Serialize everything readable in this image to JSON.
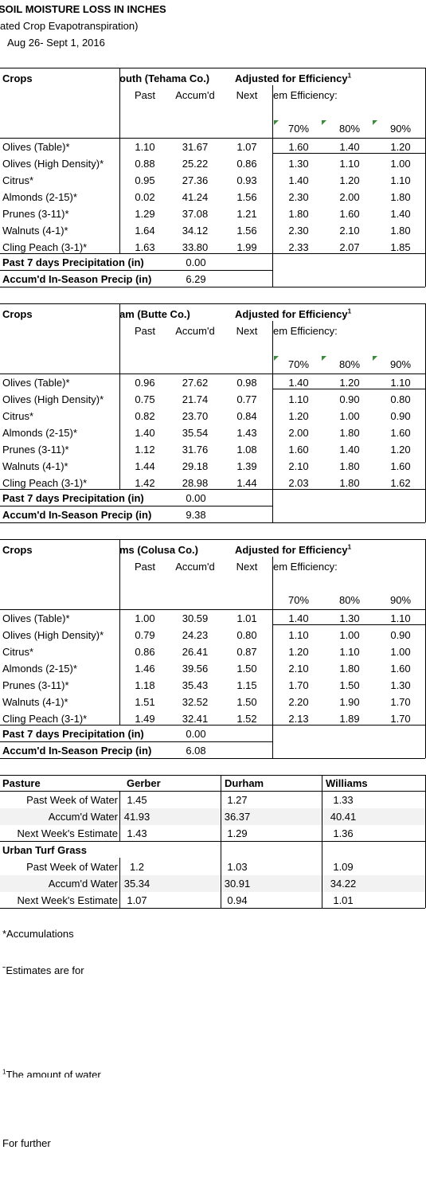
{
  "header": {
    "title": "SOIL MOISTURE LOSS IN INCHES",
    "subtitle": "ated Crop Evapotranspiration)",
    "dates": "Aug 26- Sept 1, 2016"
  },
  "crop_sections": [
    {
      "crops_label": "Crops",
      "location": "outh (Tehama Co.)",
      "adjusted_label": "Adjusted for Efficiency",
      "footnote_mark": "1",
      "past_label": "Past",
      "accum_label": "Accum'd",
      "next_label": "Next",
      "efficiency_label": "em Efficiency:",
      "eff_headers": [
        "70%",
        "80%",
        "90%"
      ],
      "rows": [
        {
          "crop": "Olives (Table)*",
          "past": "1.10",
          "accum": "31.67",
          "next": "1.07",
          "e70": "1.60",
          "e80": "1.40",
          "e90": "1.20"
        },
        {
          "crop": "Olives (High Density)*",
          "past": "0.88",
          "accum": "25.22",
          "next": "0.86",
          "e70": "1.30",
          "e80": "1.10",
          "e90": "1.00"
        },
        {
          "crop": "Citrus*",
          "past": "0.95",
          "accum": "27.36",
          "next": "0.93",
          "e70": "1.40",
          "e80": "1.20",
          "e90": "1.10"
        },
        {
          "crop": "Almonds (2-15)*",
          "past": "0.02",
          "accum": "41.24",
          "next": "1.56",
          "e70": "2.30",
          "e80": "2.00",
          "e90": "1.80"
        },
        {
          "crop": "Prunes (3-11)*",
          "past": "1.29",
          "accum": "37.08",
          "next": "1.21",
          "e70": "1.80",
          "e80": "1.60",
          "e90": "1.40"
        },
        {
          "crop": "Walnuts (4-1)*",
          "past": "1.64",
          "accum": "34.12",
          "next": "1.56",
          "e70": "2.30",
          "e80": "2.10",
          "e90": "1.80"
        },
        {
          "crop": "Cling Peach (3-1)*",
          "past": "1.63",
          "accum": "33.80",
          "next": "1.99",
          "e70": "2.33",
          "e80": "2.07",
          "e90": "1.85"
        }
      ],
      "precip_label": "Past 7 days Precipitation (in)",
      "precip_value": "0.00",
      "accum_precip_label": "Accum'd In-Season Precip (in)",
      "accum_precip_value": "6.29"
    },
    {
      "crops_label": "Crops",
      "location": "am (Butte Co.)",
      "adjusted_label": "Adjusted for Efficiency",
      "footnote_mark": "1",
      "past_label": "Past",
      "accum_label": "Accum'd",
      "next_label": "Next",
      "efficiency_label": "em Efficiency:",
      "eff_headers": [
        "70%",
        "80%",
        "90%"
      ],
      "rows": [
        {
          "crop": "Olives (Table)*",
          "past": "0.96",
          "accum": "27.62",
          "next": "0.98",
          "e70": "1.40",
          "e80": "1.20",
          "e90": "1.10"
        },
        {
          "crop": "Olives (High Density)*",
          "past": "0.75",
          "accum": "21.74",
          "next": "0.77",
          "e70": "1.10",
          "e80": "0.90",
          "e90": "0.80"
        },
        {
          "crop": "Citrus*",
          "past": "0.82",
          "accum": "23.70",
          "next": "0.84",
          "e70": "1.20",
          "e80": "1.00",
          "e90": "0.90"
        },
        {
          "crop": "Almonds (2-15)*",
          "past": "1.40",
          "accum": "35.54",
          "next": "1.43",
          "e70": "2.00",
          "e80": "1.80",
          "e90": "1.60"
        },
        {
          "crop": "Prunes (3-11)*",
          "past": "1.12",
          "accum": "31.76",
          "next": "1.08",
          "e70": "1.60",
          "e80": "1.40",
          "e90": "1.20"
        },
        {
          "crop": "Walnuts (4-1)*",
          "past": "1.44",
          "accum": "29.18",
          "next": "1.39",
          "e70": "2.10",
          "e80": "1.80",
          "e90": "1.60"
        },
        {
          "crop": "Cling Peach (3-1)*",
          "past": "1.42",
          "accum": "28.98",
          "next": "1.44",
          "e70": "2.03",
          "e80": "1.80",
          "e90": "1.62"
        }
      ],
      "precip_label": "Past 7 days Precipitation (in)",
      "precip_value": "0.00",
      "accum_precip_label": "Accum'd In-Season Precip (in)",
      "accum_precip_value": "9.38"
    },
    {
      "crops_label": "Crops",
      "location": "ms (Colusa Co.)",
      "adjusted_label": "Adjusted for Efficiency",
      "footnote_mark": "1",
      "past_label": "Past",
      "accum_label": "Accum'd",
      "next_label": "Next",
      "efficiency_label": "em Efficiency:",
      "eff_headers": [
        "70%",
        "80%",
        "90%"
      ],
      "rows": [
        {
          "crop": "Olives (Table)*",
          "past": "1.00",
          "accum": "30.59",
          "next": "1.01",
          "e70": "1.40",
          "e80": "1.30",
          "e90": "1.10"
        },
        {
          "crop": "Olives (High Density)*",
          "past": "0.79",
          "accum": "24.23",
          "next": "0.80",
          "e70": "1.10",
          "e80": "1.00",
          "e90": "0.90"
        },
        {
          "crop": "Citrus*",
          "past": "0.86",
          "accum": "26.41",
          "next": "0.87",
          "e70": "1.20",
          "e80": "1.10",
          "e90": "1.00"
        },
        {
          "crop": "Almonds (2-15)*",
          "past": "1.46",
          "accum": "39.56",
          "next": "1.50",
          "e70": "2.10",
          "e80": "1.80",
          "e90": "1.60"
        },
        {
          "crop": "Prunes (3-11)*",
          "past": "1.18",
          "accum": "35.43",
          "next": "1.15",
          "e70": "1.70",
          "e80": "1.50",
          "e90": "1.30"
        },
        {
          "crop": "Walnuts (4-1)*",
          "past": "1.51",
          "accum": "32.52",
          "next": "1.50",
          "e70": "2.20",
          "e80": "1.90",
          "e90": "1.70"
        },
        {
          "crop": "Cling Peach (3-1)*",
          "past": "1.49",
          "accum": "32.41",
          "next": "1.52",
          "e70": "2.13",
          "e80": "1.89",
          "e90": "1.70"
        }
      ],
      "precip_label": "Past 7 days Precipitation (in)",
      "precip_value": "0.00",
      "accum_precip_label": "Accum'd In-Season Precip (in)",
      "accum_precip_value": "6.08"
    }
  ],
  "pasture": {
    "title": "Pasture",
    "locations": [
      "Gerber",
      "Durham",
      "Williams"
    ],
    "rows": [
      {
        "label": "Past Week of Water",
        "values": [
          "1.45",
          "1.27",
          "1.33"
        ]
      },
      {
        "label": "Accum'd Water",
        "values": [
          "41.93",
          "36.37",
          "40.41"
        ]
      },
      {
        "label": "Next Week's Estimate",
        "values": [
          "1.43",
          "1.29",
          "1.36"
        ]
      }
    ]
  },
  "turf": {
    "title": "Urban Turf Grass",
    "rows": [
      {
        "label": "Past Week of Water",
        "values": [
          "1.2",
          "1.03",
          "1.09"
        ]
      },
      {
        "label": "Accum'd Water",
        "values": [
          "35.34",
          "30.91",
          "34.22"
        ]
      },
      {
        "label": "Next Week's Estimate",
        "values": [
          "1.07",
          "0.94",
          "1.01"
        ]
      }
    ]
  },
  "notes": {
    "accumulations": "*Accumulations",
    "estimates_mark": "ˉ",
    "estimates": "Estimates are for",
    "amount_mark": "1",
    "amount": "The amount of water",
    "further": "For further"
  },
  "colors": {
    "indicator": "#3a8a3a"
  }
}
